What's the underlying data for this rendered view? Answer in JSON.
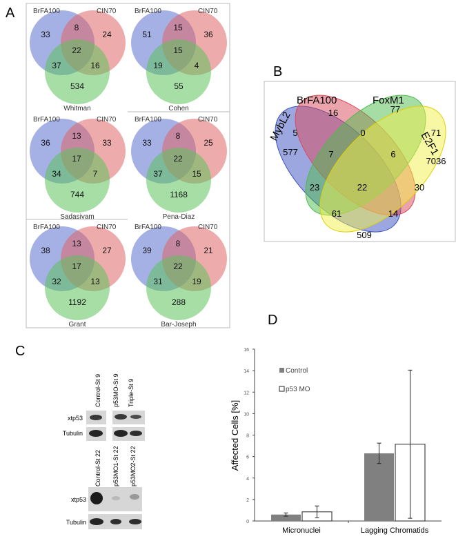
{
  "panel_labels": {
    "a": "A",
    "b": "B",
    "c": "C",
    "d": "D"
  },
  "panel_a": {
    "set_labels": {
      "left": "BrFA100",
      "right": "CIN70"
    },
    "colors": {
      "left": "#5b6fd0",
      "right": "#e06666",
      "bottom": "#5cc25c"
    },
    "venns": [
      {
        "name": "Whitman",
        "a": "33",
        "ab": "8",
        "b": "24",
        "abc": "22",
        "ac": "37",
        "bc": "16",
        "c": "534"
      },
      {
        "name": "Cohen",
        "a": "51",
        "ab": "15",
        "b": "36",
        "abc": "15",
        "ac": "19",
        "bc": "4",
        "c": "55"
      },
      {
        "name": "Sadasivam",
        "a": "36",
        "ab": "13",
        "b": "33",
        "abc": "17",
        "ac": "34",
        "bc": "7",
        "c": "744"
      },
      {
        "name": "Pena-Diaz",
        "a": "33",
        "ab": "8",
        "b": "25",
        "abc": "22",
        "ac": "37",
        "bc": "15",
        "c": "1168"
      },
      {
        "name": "Grant",
        "a": "38",
        "ab": "13",
        "b": "27",
        "abc": "17",
        "ac": "32",
        "bc": "13",
        "c": "1192"
      },
      {
        "name": "Bar-Joseph",
        "a": "39",
        "ab": "8",
        "b": "21",
        "abc": "22",
        "ac": "31",
        "bc": "19",
        "c": "288"
      }
    ]
  },
  "panel_b": {
    "set_labels": {
      "mybl2": "MybL2",
      "brfa": "BrFA100",
      "foxm1": "FoxM1",
      "e2f1": "E2F1"
    },
    "colors": {
      "mybl2": "#3a4fc0",
      "brfa": "#d94a5a",
      "foxm1": "#4cbb4c",
      "e2f1": "#f2f04a"
    },
    "values": [
      "16",
      "77",
      "5",
      "0",
      "71",
      "577",
      "7",
      "6",
      "7036",
      "22",
      "23",
      "30",
      "61",
      "14",
      "509"
    ]
  },
  "panel_c": {
    "top_lanes": [
      "Control-St 9",
      "p53MO-St 9",
      "Triple-St 9"
    ],
    "bottom_lanes": [
      "Control-St 22",
      "p53MO1-St 22",
      "p53MO2-St 22"
    ],
    "row_labels": {
      "xtp53": "xtp53",
      "tubulin": "Tubulin"
    }
  },
  "chart_data": {
    "type": "bar",
    "categories": [
      "Micronuclei",
      "Lagging Chromatids"
    ],
    "series": [
      {
        "name": "Control",
        "values": [
          0.6,
          6.3
        ],
        "errors": [
          0.15,
          0.95
        ],
        "color": "#808080"
      },
      {
        "name": "p53 MO",
        "values": [
          0.85,
          7.15
        ],
        "errors": [
          0.55,
          6.9
        ],
        "color": "#ffffff"
      }
    ],
    "ylabel": "Affected Cells [%]",
    "ylim": [
      0,
      16
    ],
    "yticks": [
      "0",
      "2",
      "4",
      "6",
      "8",
      "10",
      "12",
      "14",
      "16"
    ],
    "legend": "top-left",
    "grid": false
  }
}
